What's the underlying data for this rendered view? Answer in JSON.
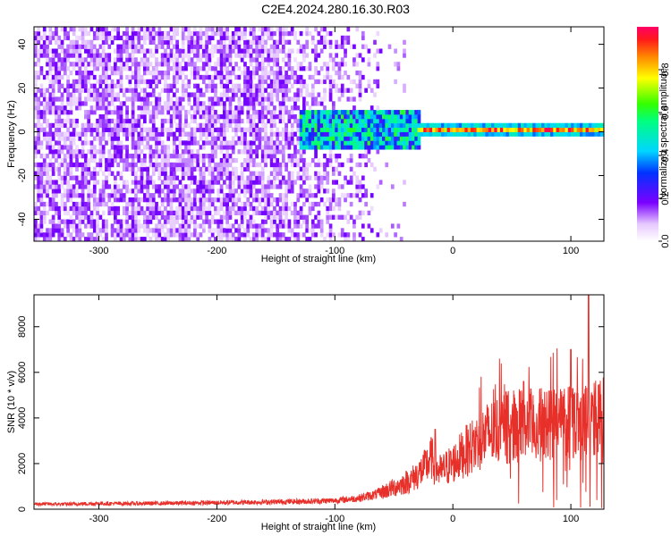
{
  "title": "C2E4.2024.280.16.30.R03",
  "chart_data": [
    {
      "type": "heatmap",
      "xlabel": "Height of straight line (km)",
      "ylabel": "Frequency (Hz)",
      "xlim": [
        -355,
        128
      ],
      "ylim": [
        -50,
        48
      ],
      "x_ticks": [
        -300,
        -200,
        -100,
        0,
        100
      ],
      "y_ticks": [
        -40,
        -20,
        0,
        20,
        40
      ],
      "colorbar": {
        "label": "Normalized spectral amplitude",
        "ticks": [
          0.0,
          0.2,
          0.4,
          0.6,
          0.8
        ],
        "range": [
          0,
          1
        ]
      },
      "features": [
        {
          "name": "broadband noise",
          "x_range": [
            -355,
            -60
          ],
          "freq_range": [
            -50,
            48
          ],
          "amplitude": 0.15
        },
        {
          "name": "signal onset",
          "x_range": [
            -130,
            -30
          ],
          "freq_center": 0,
          "freq_halfwidth": 8,
          "amplitude": 0.45
        },
        {
          "name": "carrier line",
          "x_range": [
            -30,
            128
          ],
          "freq_center": 0,
          "freq_halfwidth": 3,
          "amplitude": 0.95
        }
      ]
    },
    {
      "type": "line",
      "xlabel": "Height of straight line (km)",
      "ylabel": "SNR (10 * v/v)",
      "xlim": [
        -355,
        128
      ],
      "ylim": [
        0,
        9400
      ],
      "x_ticks": [
        -300,
        -200,
        -100,
        0,
        100
      ],
      "y_ticks": [
        0,
        2000,
        4000,
        6000,
        8000
      ],
      "color": "#e8302a",
      "series": [
        {
          "x": [
            -355,
            -330,
            -300,
            -270,
            -240,
            -210,
            -180,
            -150,
            -120,
            -100,
            -80,
            -65,
            -55,
            -45,
            -35,
            -25,
            -18,
            -15,
            -10,
            -5,
            0,
            10,
            20,
            30,
            40,
            50,
            60,
            70,
            80,
            90,
            100,
            110,
            120,
            128
          ],
          "y": [
            230,
            220,
            250,
            250,
            260,
            280,
            300,
            320,
            350,
            380,
            480,
            650,
            850,
            1050,
            1300,
            1750,
            2250,
            1800,
            1650,
            1850,
            2000,
            2500,
            2900,
            3300,
            3500,
            3650,
            3700,
            3650,
            3750,
            3850,
            4000,
            3800,
            3900,
            4100
          ]
        }
      ],
      "peaks": [
        {
          "x": -15,
          "y": 3500
        },
        {
          "x": 60,
          "y": 5600
        },
        {
          "x": 100,
          "y": 7000
        },
        {
          "x": 115,
          "y": 9400
        }
      ]
    }
  ]
}
